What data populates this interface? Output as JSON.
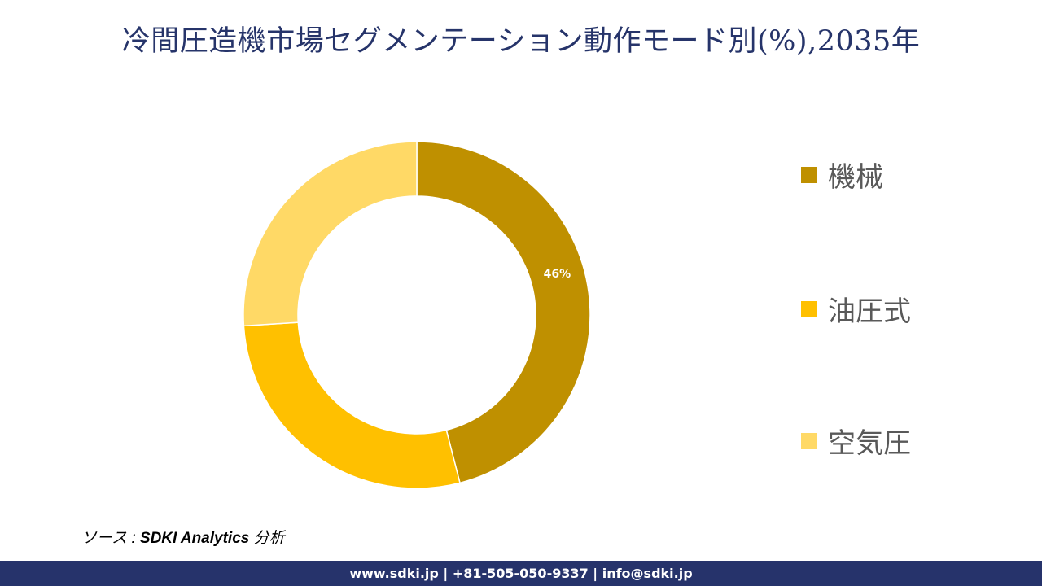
{
  "title": "冷間圧造機市場セグメンテーション動作モード別(%),2035年",
  "chart_data": {
    "type": "pie",
    "subtype": "donut",
    "title": "冷間圧造機市場セグメンテーション動作モード別(%),2035年",
    "categories": [
      "機械",
      "油圧式",
      "空気圧"
    ],
    "values": [
      46,
      28,
      26
    ],
    "colors": [
      "#bf9000",
      "#ffc000",
      "#ffd966"
    ],
    "data_labels": [
      "46%",
      "",
      ""
    ],
    "start_angle": 0,
    "direction": "clockwise",
    "legend_position": "right"
  },
  "labels": {
    "slice_0": "46%"
  },
  "legend": {
    "items": [
      {
        "label": "機械",
        "color": "#bf9000"
      },
      {
        "label": "油圧式",
        "color": "#ffc000"
      },
      {
        "label": "空気圧",
        "color": "#ffd966"
      }
    ]
  },
  "source": {
    "prefix": "ソース : ",
    "name": "SDKI Analytics",
    "suffix": " 分析"
  },
  "footer": {
    "text": "www.sdki.jp | +81-505-050-9337 | info@sdki.jp"
  }
}
